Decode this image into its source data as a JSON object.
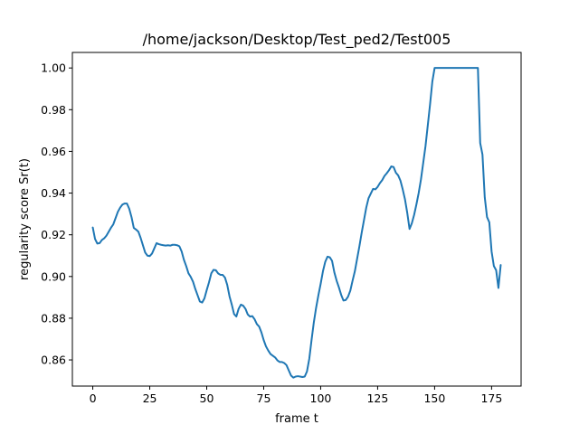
{
  "chart_data": {
    "type": "line",
    "title": "/home/jackson/Desktop/Test_ped2/Test005",
    "xlabel": "frame t",
    "ylabel": "regularity score Sr(t)",
    "xlim": [
      -8.95,
      187.95
    ],
    "ylim": [
      0.84745,
      1.00745
    ],
    "xticks": [
      0,
      25,
      50,
      75,
      100,
      125,
      150,
      175
    ],
    "xtick_labels": [
      "0",
      "25",
      "50",
      "75",
      "100",
      "125",
      "150",
      "175"
    ],
    "yticks": [
      0.86,
      0.88,
      0.9,
      0.92,
      0.94,
      0.96,
      0.98,
      1.0
    ],
    "ytick_labels": [
      "0.86",
      "0.88",
      "0.90",
      "0.92",
      "0.94",
      "0.96",
      "0.98",
      "1.00"
    ],
    "grid": false,
    "series": [
      {
        "color": "#1f77b4",
        "x": [
          0,
          1,
          2,
          3,
          4,
          5,
          6,
          7,
          8,
          9,
          10,
          11,
          12,
          13,
          14,
          15,
          16,
          17,
          18,
          19,
          20,
          21,
          22,
          23,
          24,
          25,
          26,
          27,
          28,
          29,
          30,
          31,
          32,
          33,
          34,
          35,
          36,
          37,
          38,
          39,
          40,
          41,
          42,
          43,
          44,
          45,
          46,
          47,
          48,
          49,
          50,
          51,
          52,
          53,
          54,
          55,
          56,
          57,
          58,
          59,
          60,
          61,
          62,
          63,
          64,
          65,
          66,
          67,
          68,
          69,
          70,
          71,
          72,
          73,
          74,
          75,
          76,
          77,
          78,
          79,
          80,
          81,
          82,
          83,
          84,
          85,
          86,
          87,
          88,
          89,
          90,
          91,
          92,
          93,
          94,
          95,
          96,
          97,
          98,
          99,
          100,
          101,
          102,
          103,
          104,
          105,
          106,
          107,
          108,
          109,
          110,
          111,
          112,
          113,
          114,
          115,
          116,
          117,
          118,
          119,
          120,
          121,
          122,
          123,
          124,
          125,
          126,
          127,
          128,
          129,
          130,
          131,
          132,
          133,
          134,
          135,
          136,
          137,
          138,
          139,
          140,
          141,
          142,
          143,
          144,
          145,
          146,
          147,
          148,
          149,
          150,
          151,
          152,
          153,
          154,
          155,
          156,
          157,
          158,
          159,
          160,
          161,
          162,
          163,
          164,
          165,
          166,
          167,
          168,
          169,
          170,
          171,
          172,
          173,
          174,
          175,
          176,
          177,
          178,
          179
        ],
        "y": [
          0.9235,
          0.918,
          0.9158,
          0.916,
          0.9175,
          0.9183,
          0.9196,
          0.9215,
          0.9234,
          0.925,
          0.928,
          0.931,
          0.933,
          0.9345,
          0.935,
          0.935,
          0.9325,
          0.9285,
          0.9233,
          0.9225,
          0.9215,
          0.9185,
          0.915,
          0.9115,
          0.91,
          0.9098,
          0.911,
          0.9135,
          0.916,
          0.9155,
          0.9152,
          0.915,
          0.9148,
          0.915,
          0.9148,
          0.9152,
          0.9152,
          0.915,
          0.9145,
          0.912,
          0.908,
          0.905,
          0.9015,
          0.8998,
          0.8975,
          0.894,
          0.891,
          0.888,
          0.8875,
          0.8895,
          0.8935,
          0.8972,
          0.9015,
          0.9032,
          0.903,
          0.9015,
          0.9008,
          0.9008,
          0.8995,
          0.896,
          0.8905,
          0.8865,
          0.882,
          0.8808,
          0.8845,
          0.8865,
          0.886,
          0.8845,
          0.8818,
          0.8808,
          0.881,
          0.8795,
          0.8772,
          0.876,
          0.8732,
          0.8695,
          0.8665,
          0.8645,
          0.8628,
          0.862,
          0.8612,
          0.8598,
          0.859,
          0.859,
          0.8585,
          0.8575,
          0.855,
          0.8525,
          0.8515,
          0.852,
          0.8522,
          0.852,
          0.8518,
          0.852,
          0.8545,
          0.8605,
          0.8695,
          0.878,
          0.885,
          0.891,
          0.8965,
          0.9025,
          0.907,
          0.9095,
          0.9092,
          0.9075,
          0.902,
          0.898,
          0.8948,
          0.8912,
          0.8885,
          0.8887,
          0.8903,
          0.8932,
          0.898,
          0.9025,
          0.9085,
          0.9145,
          0.921,
          0.927,
          0.933,
          0.9375,
          0.9398,
          0.942,
          0.9418,
          0.943,
          0.9448,
          0.9462,
          0.9482,
          0.9495,
          0.951,
          0.9528,
          0.9525,
          0.9498,
          0.9485,
          0.946,
          0.9418,
          0.937,
          0.9305,
          0.9228,
          0.9255,
          0.9295,
          0.9345,
          0.94,
          0.9465,
          0.9545,
          0.9625,
          0.9725,
          0.9825,
          0.9935,
          1.0,
          1.0,
          1.0,
          1.0,
          1.0,
          1.0,
          1.0,
          1.0,
          1.0,
          1.0,
          1.0,
          1.0,
          1.0,
          1.0,
          1.0,
          1.0,
          1.0,
          1.0,
          1.0,
          1.0,
          0.964,
          0.9585,
          0.938,
          0.9285,
          0.926,
          0.912,
          0.905,
          0.903,
          0.8945,
          0.9055
        ]
      }
    ]
  }
}
